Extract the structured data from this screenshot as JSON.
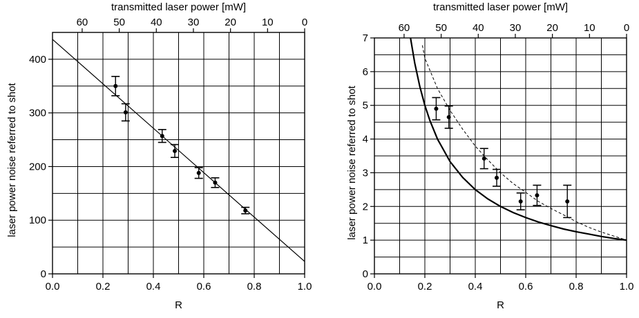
{
  "chart_data": [
    {
      "type": "scatter",
      "xlabel": "R",
      "x2label": "transmitted laser power [mW]",
      "ylabel": "laser power noise referred to shot",
      "xlim": [
        0,
        1
      ],
      "ylim": [
        0,
        450
      ],
      "x_ticks": [
        "0.0",
        "0.2",
        "0.4",
        "0.6",
        "0.8",
        "1.0"
      ],
      "y_ticks": [
        "0",
        "100",
        "200",
        "300",
        "400"
      ],
      "x2_ticks": [
        "60",
        "50",
        "40",
        "30",
        "20",
        "10",
        "0"
      ],
      "grid": true,
      "series": [
        {
          "kind": "points_with_errorbars",
          "x": [
            0.25,
            0.29,
            0.435,
            0.485,
            0.58,
            0.645,
            0.765
          ],
          "y": [
            350,
            301,
            257,
            229,
            188,
            170,
            118
          ],
          "yerr": [
            18,
            16,
            12,
            12,
            10,
            9,
            6
          ]
        },
        {
          "kind": "fit_line",
          "x": [
            0,
            1
          ],
          "y": [
            437,
            23
          ]
        }
      ]
    },
    {
      "type": "scatter",
      "xlabel": "R",
      "x2label": "transmitted laser power [mW]",
      "ylabel": "laser power noise referred to shot",
      "xlim": [
        0,
        1
      ],
      "ylim": [
        0,
        7
      ],
      "x_ticks": [
        "0.0",
        "0.2",
        "0.4",
        "0.6",
        "0.8",
        "1.0"
      ],
      "y_ticks": [
        "0",
        "1",
        "2",
        "3",
        "4",
        "5",
        "6",
        "7"
      ],
      "x2_ticks": [
        "60",
        "50",
        "40",
        "30",
        "20",
        "10",
        "0"
      ],
      "grid": true,
      "series": [
        {
          "kind": "points_with_errorbars",
          "x": [
            0.245,
            0.295,
            0.435,
            0.485,
            0.58,
            0.645,
            0.765
          ],
          "y": [
            4.9,
            4.65,
            3.42,
            2.85,
            2.15,
            2.33,
            2.15
          ],
          "yerr": [
            0.33,
            0.33,
            0.3,
            0.25,
            0.25,
            0.3,
            0.48
          ]
        },
        {
          "kind": "solid_curve",
          "x": [
            0.14,
            0.16,
            0.18,
            0.2,
            0.22,
            0.25,
            0.3,
            0.35,
            0.4,
            0.45,
            0.5,
            0.55,
            0.6,
            0.65,
            0.7,
            0.75,
            0.8,
            0.85,
            0.9,
            0.95,
            1.0
          ],
          "y": [
            7.14,
            6.25,
            5.56,
            5.0,
            4.55,
            4.0,
            3.33,
            2.86,
            2.5,
            2.22,
            2.0,
            1.82,
            1.67,
            1.54,
            1.43,
            1.33,
            1.25,
            1.18,
            1.11,
            1.05,
            1.0
          ]
        },
        {
          "kind": "dashed_curve",
          "x": [
            0.19,
            0.2,
            0.25,
            0.3,
            0.35,
            0.4,
            0.45,
            0.5,
            0.55,
            0.6,
            0.65,
            0.7,
            0.75,
            0.8,
            0.85,
            0.9,
            0.95,
            1.0
          ],
          "y": [
            6.78,
            6.4,
            5.5,
            4.85,
            4.29,
            3.79,
            3.38,
            3.0,
            2.68,
            2.42,
            2.15,
            1.94,
            1.75,
            1.55,
            1.38,
            1.24,
            1.12,
            1.0
          ]
        }
      ]
    }
  ]
}
